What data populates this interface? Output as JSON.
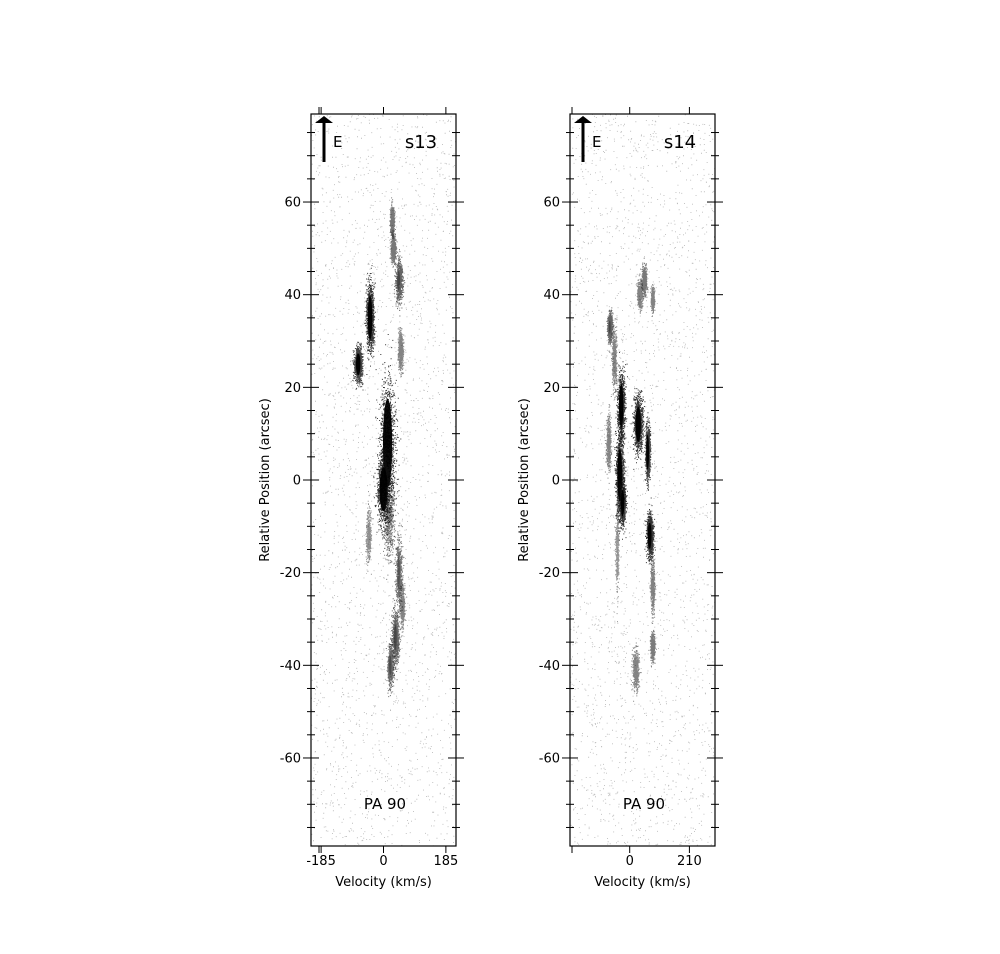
{
  "chart_data": [
    {
      "type": "scatter",
      "title": "s13",
      "annotation": "PA 90",
      "compass_label": "E",
      "xlabel": "Velocity (km/s)",
      "ylabel": "Relative Position (arcsec)",
      "xlim": [
        -215,
        215
      ],
      "ylim": [
        -79,
        79
      ],
      "x_ticks": [
        -185,
        0,
        185
      ],
      "x_tick_labels": [
        "-185",
        "0",
        "185"
      ],
      "y_ticks": [
        -60,
        -40,
        -20,
        0,
        20,
        40,
        60
      ],
      "y_tick_labels": [
        "-60",
        "-40",
        "-20",
        "0",
        "20",
        "40",
        "60"
      ],
      "grid": false,
      "colormap": "gray_r",
      "features": [
        {
          "v": 12,
          "pos": 8,
          "dv": 16,
          "dp": 10,
          "intensity": 1.0
        },
        {
          "v": 0,
          "pos": -2,
          "dv": 14,
          "dp": 5,
          "intensity": 1.0
        },
        {
          "v": -40,
          "pos": 35,
          "dv": 8,
          "dp": 5,
          "intensity": 1.0
        },
        {
          "v": -75,
          "pos": 25,
          "dv": 8,
          "dp": 2.5,
          "intensity": 0.9
        },
        {
          "v": 45,
          "pos": 43,
          "dv": 7,
          "dp": 3,
          "intensity": 0.6
        },
        {
          "v": 28,
          "pos": 50,
          "dv": 5,
          "dp": 2,
          "intensity": 0.45
        },
        {
          "v": 25,
          "pos": 56,
          "dv": 4,
          "dp": 2,
          "intensity": 0.45
        },
        {
          "v": 50,
          "pos": 28,
          "dv": 5,
          "dp": 3,
          "intensity": 0.35
        },
        {
          "v": 15,
          "pos": -8,
          "dv": 12,
          "dp": 6,
          "intensity": 0.45
        },
        {
          "v": 45,
          "pos": -20,
          "dv": 6,
          "dp": 5,
          "intensity": 0.5
        },
        {
          "v": 55,
          "pos": -27,
          "dv": 5,
          "dp": 3,
          "intensity": 0.35
        },
        {
          "v": 35,
          "pos": -34,
          "dv": 7,
          "dp": 4,
          "intensity": 0.6
        },
        {
          "v": 20,
          "pos": -40,
          "dv": 6,
          "dp": 3,
          "intensity": 0.55
        },
        {
          "v": -45,
          "pos": -12,
          "dv": 5,
          "dp": 4,
          "intensity": 0.25
        }
      ]
    },
    {
      "type": "scatter",
      "title": "s14",
      "annotation": "PA 90",
      "compass_label": "E",
      "xlabel": "Velocity (km/s)",
      "ylabel": "Relative Position (arcsec)",
      "xlim": [
        -210,
        300
      ],
      "ylim": [
        -79,
        79
      ],
      "x_ticks": [
        0,
        210
      ],
      "x_tick_labels": [
        "0",
        "210"
      ],
      "y_ticks": [
        -60,
        -40,
        -20,
        0,
        20,
        40,
        60
      ],
      "y_tick_labels": [
        "-60",
        "-40",
        "-20",
        "0",
        "20",
        "40",
        "60"
      ],
      "grid": false,
      "colormap": "gray_r",
      "features": [
        {
          "v": -30,
          "pos": 16,
          "dv": 9,
          "dp": 5,
          "intensity": 1.0
        },
        {
          "v": 30,
          "pos": 12,
          "dv": 11,
          "dp": 4,
          "intensity": 1.0
        },
        {
          "v": -35,
          "pos": 1,
          "dv": 10,
          "dp": 6,
          "intensity": 1.0
        },
        {
          "v": -25,
          "pos": -5,
          "dv": 7,
          "dp": 3,
          "intensity": 0.95
        },
        {
          "v": 63,
          "pos": 6,
          "dv": 6,
          "dp": 4,
          "intensity": 0.9
        },
        {
          "v": 70,
          "pos": -12,
          "dv": 8,
          "dp": 3,
          "intensity": 1.0
        },
        {
          "v": -70,
          "pos": 33,
          "dv": 5,
          "dp": 2,
          "intensity": 0.6
        },
        {
          "v": -55,
          "pos": 26,
          "dv": 6,
          "dp": 4,
          "intensity": 0.35
        },
        {
          "v": 50,
          "pos": 43,
          "dv": 6,
          "dp": 2,
          "intensity": 0.45
        },
        {
          "v": 35,
          "pos": 40,
          "dv": 6,
          "dp": 2,
          "intensity": 0.35
        },
        {
          "v": 80,
          "pos": 39,
          "dv": 4,
          "dp": 1.5,
          "intensity": 0.35
        },
        {
          "v": -75,
          "pos": 8,
          "dv": 6,
          "dp": 4,
          "intensity": 0.35
        },
        {
          "v": 80,
          "pos": -23,
          "dv": 5,
          "dp": 4,
          "intensity": 0.35
        },
        {
          "v": 80,
          "pos": -36,
          "dv": 5,
          "dp": 2,
          "intensity": 0.4
        },
        {
          "v": 20,
          "pos": -41,
          "dv": 8,
          "dp": 3,
          "intensity": 0.35
        },
        {
          "v": -45,
          "pos": -15,
          "dv": 4,
          "dp": 6,
          "intensity": 0.2
        }
      ]
    }
  ]
}
